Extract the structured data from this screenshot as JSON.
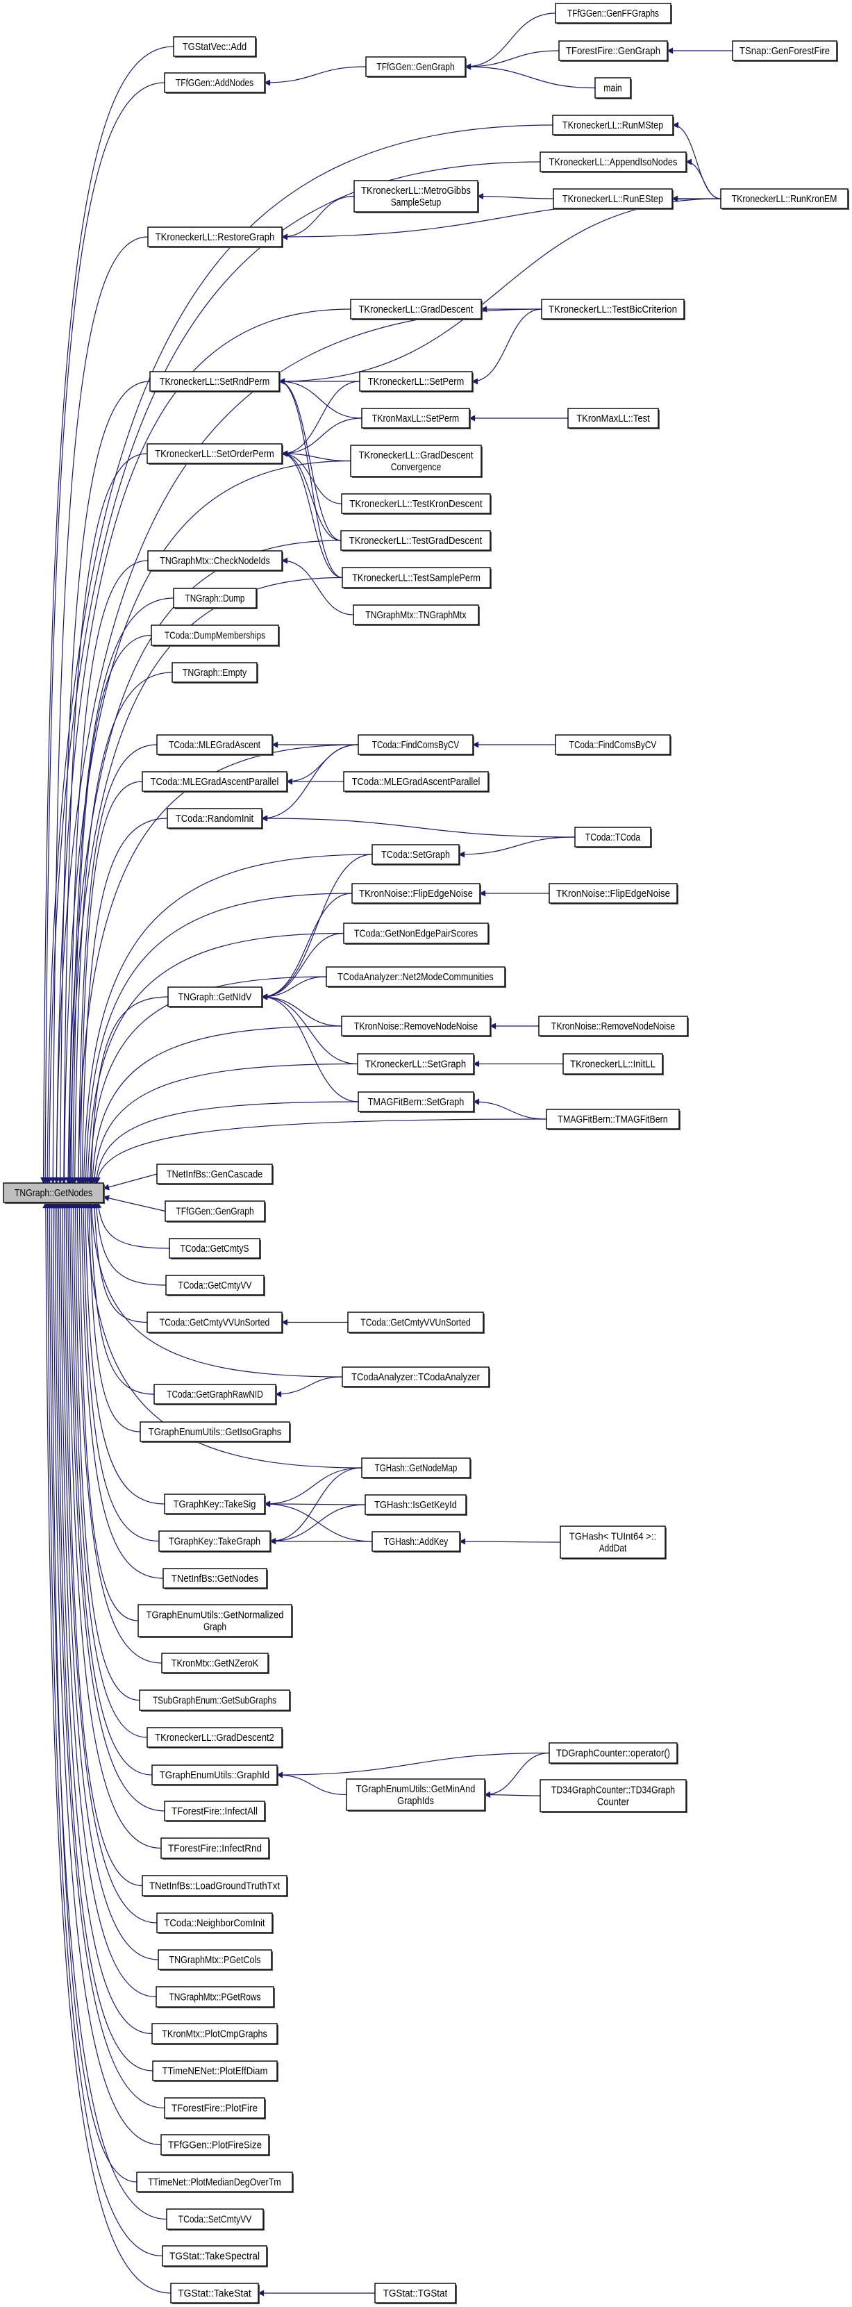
{
  "colors": {
    "edge": "#191970",
    "highlight_node": "#bfbfbf",
    "node": "#ffffff"
  },
  "nodes": [
    {
      "id": "gn",
      "lines": [
        "TNGraph::GetNodes"
      ],
      "highlight": true
    },
    {
      "id": "statvecadd",
      "lines": [
        "TGStatVec::Add"
      ]
    },
    {
      "id": "addnodes",
      "lines": [
        "TFfGGen::AddNodes"
      ]
    },
    {
      "id": "restoregraph",
      "lines": [
        "TKroneckerLL::RestoreGraph"
      ]
    },
    {
      "id": "setrndperm",
      "lines": [
        "TKroneckerLL::SetRndPerm"
      ]
    },
    {
      "id": "setorderperm",
      "lines": [
        "TKroneckerLL::SetOrderPerm"
      ]
    },
    {
      "id": "checknodeids",
      "lines": [
        "TNGraphMtx::CheckNodeIds"
      ]
    },
    {
      "id": "dump",
      "lines": [
        "TNGraph::Dump"
      ]
    },
    {
      "id": "dumpmem",
      "lines": [
        "TCoda::DumpMemberships"
      ]
    },
    {
      "id": "empty",
      "lines": [
        "TNGraph::Empty"
      ]
    },
    {
      "id": "mlega",
      "lines": [
        "TCoda::MLEGradAscent"
      ]
    },
    {
      "id": "mlegap1",
      "lines": [
        "TCoda::MLEGradAscentParallel"
      ]
    },
    {
      "id": "randominit",
      "lines": [
        "TCoda::RandomInit"
      ]
    },
    {
      "id": "getnidv",
      "lines": [
        "TNGraph::GetNIdV"
      ]
    },
    {
      "id": "gencascade",
      "lines": [
        "TNetInfBs::GenCascade"
      ]
    },
    {
      "id": "ffgengraph1",
      "lines": [
        "TFfGGen::GenGraph"
      ]
    },
    {
      "id": "getcmtys",
      "lines": [
        "TCoda::GetCmtyS"
      ]
    },
    {
      "id": "getcmtyvv",
      "lines": [
        "TCoda::GetCmtyVV"
      ]
    },
    {
      "id": "vvunsorted1",
      "lines": [
        "TCoda::GetCmtyVVUnSorted"
      ]
    },
    {
      "id": "rawnid",
      "lines": [
        "TCoda::GetGraphRawNID"
      ]
    },
    {
      "id": "isographs",
      "lines": [
        "TGraphEnumUtils::GetIsoGraphs"
      ]
    },
    {
      "id": "takesig",
      "lines": [
        "TGraphKey::TakeSig"
      ]
    },
    {
      "id": "takegraph",
      "lines": [
        "TGraphKey::TakeGraph"
      ]
    },
    {
      "id": "netinfgetnodes",
      "lines": [
        "TNetInfBs::GetNodes"
      ]
    },
    {
      "id": "normgraph",
      "lines": [
        "TGraphEnumUtils::GetNormalized",
        "Graph"
      ]
    },
    {
      "id": "nzerok",
      "lines": [
        "TKronMtx::GetNZeroK"
      ]
    },
    {
      "id": "subgraphs",
      "lines": [
        "TSubGraphEnum::GetSubGraphs"
      ]
    },
    {
      "id": "graddesc2",
      "lines": [
        "TKroneckerLL::GradDescent2"
      ]
    },
    {
      "id": "graphid",
      "lines": [
        "TGraphEnumUtils::GraphId"
      ]
    },
    {
      "id": "infectall",
      "lines": [
        "TForestFire::InfectAll"
      ]
    },
    {
      "id": "infectrnd",
      "lines": [
        "TForestFire::InfectRnd"
      ]
    },
    {
      "id": "loadgt",
      "lines": [
        "TNetInfBs::LoadGroundTruthTxt"
      ]
    },
    {
      "id": "neighbor",
      "lines": [
        "TCoda::NeighborComInit"
      ]
    },
    {
      "id": "pgetcols",
      "lines": [
        "TNGraphMtx::PGetCols"
      ]
    },
    {
      "id": "pgetrows",
      "lines": [
        "TNGraphMtx::PGetRows"
      ]
    },
    {
      "id": "plotcmp",
      "lines": [
        "TKronMtx::PlotCmpGraphs"
      ]
    },
    {
      "id": "ploteff",
      "lines": [
        "TTimeNENet::PlotEffDiam"
      ]
    },
    {
      "id": "plotfire",
      "lines": [
        "TForestFire::PlotFire"
      ]
    },
    {
      "id": "plotfiresize",
      "lines": [
        "TFfGGen::PlotFireSize"
      ]
    },
    {
      "id": "plotmedian",
      "lines": [
        "TTimeNet::PlotMedianDegOverTm"
      ]
    },
    {
      "id": "setcmtyvv",
      "lines": [
        "TCoda::SetCmtyVV"
      ]
    },
    {
      "id": "takespectral",
      "lines": [
        "TGStat::TakeSpectral"
      ]
    },
    {
      "id": "takestat",
      "lines": [
        "TGStat::TakeStat"
      ]
    },
    {
      "id": "ffgengraph2",
      "lines": [
        "TFfGGen::GenGraph"
      ]
    },
    {
      "id": "metrogibbs",
      "lines": [
        "TKroneckerLL::MetroGibbs",
        "SampleSetup"
      ]
    },
    {
      "id": "graddescent",
      "lines": [
        "TKroneckerLL::GradDescent"
      ]
    },
    {
      "id": "klsetperm",
      "lines": [
        "TKroneckerLL::SetPerm"
      ]
    },
    {
      "id": "kmsetperm",
      "lines": [
        "TKronMaxLL::SetPerm"
      ]
    },
    {
      "id": "gdconv",
      "lines": [
        "TKroneckerLL::GradDescent",
        "Convergence"
      ]
    },
    {
      "id": "testkron",
      "lines": [
        "TKroneckerLL::TestKronDescent"
      ]
    },
    {
      "id": "testgrad",
      "lines": [
        "TKroneckerLL::TestGradDescent"
      ]
    },
    {
      "id": "testsample",
      "lines": [
        "TKroneckerLL::TestSamplePerm"
      ]
    },
    {
      "id": "tngraphmtx",
      "lines": [
        "TNGraphMtx::TNGraphMtx"
      ]
    },
    {
      "id": "findcoms2",
      "lines": [
        "TCoda::FindComsByCV"
      ]
    },
    {
      "id": "mlegap2",
      "lines": [
        "TCoda::MLEGradAscentParallel"
      ]
    },
    {
      "id": "codasetgraph",
      "lines": [
        "TCoda::SetGraph"
      ]
    },
    {
      "id": "flip2",
      "lines": [
        "TKronNoise::FlipEdgeNoise"
      ]
    },
    {
      "id": "nonedge",
      "lines": [
        "TCoda::GetNonEdgePairScores"
      ]
    },
    {
      "id": "net2mode",
      "lines": [
        "TCodaAnalyzer::Net2ModeCommunities"
      ]
    },
    {
      "id": "remove2",
      "lines": [
        "TKronNoise::RemoveNodeNoise"
      ]
    },
    {
      "id": "klsetgraph",
      "lines": [
        "TKroneckerLL::SetGraph"
      ]
    },
    {
      "id": "magsetgraph",
      "lines": [
        "TMAGFitBern::SetGraph"
      ]
    },
    {
      "id": "vvunsorted2",
      "lines": [
        "TCoda::GetCmtyVVUnSorted"
      ]
    },
    {
      "id": "codaanalyzer",
      "lines": [
        "TCodaAnalyzer::TCodaAnalyzer"
      ]
    },
    {
      "id": "getnodemap",
      "lines": [
        "TGHash::GetNodeMap"
      ]
    },
    {
      "id": "isgetkeyid",
      "lines": [
        "TGHash::IsGetKeyId"
      ]
    },
    {
      "id": "addkey",
      "lines": [
        "TGHash::AddKey"
      ]
    },
    {
      "id": "getminand",
      "lines": [
        "TGraphEnumUtils::GetMinAnd",
        "GraphIds"
      ]
    },
    {
      "id": "tgstat",
      "lines": [
        "TGStat::TGStat"
      ]
    },
    {
      "id": "genffgraphs",
      "lines": [
        "TFfGGen::GenFFGraphs"
      ]
    },
    {
      "id": "forestgen",
      "lines": [
        "TForestFire::GenGraph"
      ]
    },
    {
      "id": "main",
      "lines": [
        "main"
      ]
    },
    {
      "id": "runmstep",
      "lines": [
        "TKroneckerLL::RunMStep"
      ]
    },
    {
      "id": "appendiso",
      "lines": [
        "TKroneckerLL::AppendIsoNodes"
      ]
    },
    {
      "id": "runestep",
      "lines": [
        "TKroneckerLL::RunEStep"
      ]
    },
    {
      "id": "testbic",
      "lines": [
        "TKroneckerLL::TestBicCriterion"
      ]
    },
    {
      "id": "kmtest",
      "lines": [
        "TKronMaxLL::Test"
      ]
    },
    {
      "id": "findcoms3",
      "lines": [
        "TCoda::FindComsByCV"
      ]
    },
    {
      "id": "tcoda",
      "lines": [
        "TCoda::TCoda"
      ]
    },
    {
      "id": "flip3",
      "lines": [
        "TKronNoise::FlipEdgeNoise"
      ]
    },
    {
      "id": "remove3",
      "lines": [
        "TKronNoise::RemoveNodeNoise"
      ]
    },
    {
      "id": "initll",
      "lines": [
        "TKroneckerLL::InitLL"
      ]
    },
    {
      "id": "tmagfitbern",
      "lines": [
        "TMAGFitBern::TMAGFitBern"
      ]
    },
    {
      "id": "adddat",
      "lines": [
        "TGHash< TUInt64 >::",
        "AddDat"
      ]
    },
    {
      "id": "tdgc",
      "lines": [
        "TDGraphCounter::operator()"
      ]
    },
    {
      "id": "td34",
      "lines": [
        "TD34GraphCounter::TD34Graph",
        "Counter"
      ]
    },
    {
      "id": "genforestfire",
      "lines": [
        "TSnap::GenForestFire"
      ]
    },
    {
      "id": "runkronem",
      "lines": [
        "TKroneckerLL::RunKronEM"
      ]
    }
  ],
  "edges": [
    [
      "genffgraphs",
      "ffgengraph2"
    ],
    [
      "forestgen",
      "ffgengraph2"
    ],
    [
      "main",
      "ffgengraph2"
    ],
    [
      "genforestfire",
      "forestgen"
    ],
    [
      "ffgengraph2",
      "addnodes"
    ],
    [
      "runkronem",
      "runmstep"
    ],
    [
      "runkronem",
      "appendiso"
    ],
    [
      "runkronem",
      "runestep"
    ],
    [
      "runkronem",
      "restoregraph"
    ],
    [
      "runkronem",
      "setrndperm"
    ],
    [
      "runestep",
      "metrogibbs"
    ],
    [
      "metrogibbs",
      "restoregraph"
    ],
    [
      "testbic",
      "graddescent"
    ],
    [
      "testbic",
      "klsetperm"
    ],
    [
      "klsetperm",
      "setrndperm"
    ],
    [
      "klsetperm",
      "setorderperm"
    ],
    [
      "kmsetperm",
      "setrndperm"
    ],
    [
      "kmsetperm",
      "setorderperm"
    ],
    [
      "kmtest",
      "kmsetperm"
    ],
    [
      "gdconv",
      "setorderperm"
    ],
    [
      "testkron",
      "setorderperm"
    ],
    [
      "testgrad",
      "setorderperm"
    ],
    [
      "testgrad",
      "setrndperm"
    ],
    [
      "testsample",
      "setorderperm"
    ],
    [
      "testsample",
      "setrndperm"
    ],
    [
      "tngraphmtx",
      "checknodeids"
    ],
    [
      "findcoms2",
      "mlega"
    ],
    [
      "findcoms2",
      "mlegap1"
    ],
    [
      "findcoms2",
      "randominit"
    ],
    [
      "findcoms3",
      "findcoms2"
    ],
    [
      "mlegap2",
      "mlegap1"
    ],
    [
      "tcoda",
      "randominit"
    ],
    [
      "tcoda",
      "codasetgraph"
    ],
    [
      "codasetgraph",
      "getnidv"
    ],
    [
      "flip2",
      "getnidv"
    ],
    [
      "flip3",
      "flip2"
    ],
    [
      "nonedge",
      "getnidv"
    ],
    [
      "net2mode",
      "getnidv"
    ],
    [
      "remove2",
      "getnidv"
    ],
    [
      "remove3",
      "remove2"
    ],
    [
      "klsetgraph",
      "getnidv"
    ],
    [
      "initll",
      "klsetgraph"
    ],
    [
      "magsetgraph",
      "getnidv"
    ],
    [
      "tmagfitbern",
      "magsetgraph"
    ],
    [
      "vvunsorted2",
      "vvunsorted1"
    ],
    [
      "codaanalyzer",
      "rawnid"
    ],
    [
      "getnodemap",
      "takesig"
    ],
    [
      "getnodemap",
      "takegraph"
    ],
    [
      "isgetkeyid",
      "takesig"
    ],
    [
      "isgetkeyid",
      "takegraph"
    ],
    [
      "addkey",
      "takegraph"
    ],
    [
      "addkey",
      "takesig"
    ],
    [
      "adddat",
      "addkey"
    ],
    [
      "tdgc",
      "graphid"
    ],
    [
      "tdgc",
      "getminand"
    ],
    [
      "getminand",
      "graphid"
    ],
    [
      "td34",
      "getminand"
    ],
    [
      "tgstat",
      "takestat"
    ],
    [
      "statvecadd",
      "gn"
    ],
    [
      "addnodes",
      "gn"
    ],
    [
      "restoregraph",
      "gn"
    ],
    [
      "setrndperm",
      "gn"
    ],
    [
      "setorderperm",
      "gn"
    ],
    [
      "checknodeids",
      "gn"
    ],
    [
      "dump",
      "gn"
    ],
    [
      "dumpmem",
      "gn"
    ],
    [
      "empty",
      "gn"
    ],
    [
      "mlega",
      "gn"
    ],
    [
      "mlegap1",
      "gn"
    ],
    [
      "randominit",
      "gn"
    ],
    [
      "getnidv",
      "gn"
    ],
    [
      "gencascade",
      "gn"
    ],
    [
      "ffgengraph1",
      "gn"
    ],
    [
      "getcmtys",
      "gn"
    ],
    [
      "getcmtyvv",
      "gn"
    ],
    [
      "vvunsorted1",
      "gn"
    ],
    [
      "rawnid",
      "gn"
    ],
    [
      "isographs",
      "gn"
    ],
    [
      "takesig",
      "gn"
    ],
    [
      "takegraph",
      "gn"
    ],
    [
      "netinfgetnodes",
      "gn"
    ],
    [
      "normgraph",
      "gn"
    ],
    [
      "nzerok",
      "gn"
    ],
    [
      "subgraphs",
      "gn"
    ],
    [
      "graddesc2",
      "gn"
    ],
    [
      "graphid",
      "gn"
    ],
    [
      "infectall",
      "gn"
    ],
    [
      "infectrnd",
      "gn"
    ],
    [
      "loadgt",
      "gn"
    ],
    [
      "neighbor",
      "gn"
    ],
    [
      "pgetcols",
      "gn"
    ],
    [
      "pgetrows",
      "gn"
    ],
    [
      "plotcmp",
      "gn"
    ],
    [
      "ploteff",
      "gn"
    ],
    [
      "plotfire",
      "gn"
    ],
    [
      "plotfiresize",
      "gn"
    ],
    [
      "plotmedian",
      "gn"
    ],
    [
      "setcmtyvv",
      "gn"
    ],
    [
      "takespectral",
      "gn"
    ],
    [
      "takestat",
      "gn"
    ],
    [
      "runmstep",
      "gn"
    ],
    [
      "appendiso",
      "gn"
    ],
    [
      "testbic",
      "gn"
    ],
    [
      "graddescent",
      "gn"
    ],
    [
      "gdconv",
      "gn"
    ],
    [
      "testgrad",
      "gn"
    ],
    [
      "testsample",
      "gn"
    ],
    [
      "findcoms2",
      "gn"
    ],
    [
      "codasetgraph",
      "gn"
    ],
    [
      "flip2",
      "gn"
    ],
    [
      "nonedge",
      "gn"
    ],
    [
      "net2mode",
      "gn"
    ],
    [
      "remove2",
      "gn"
    ],
    [
      "klsetgraph",
      "gn"
    ],
    [
      "magsetgraph",
      "gn"
    ],
    [
      "tmagfitbern",
      "gn"
    ],
    [
      "codaanalyzer",
      "gn"
    ],
    [
      "getnodemap",
      "gn"
    ]
  ]
}
